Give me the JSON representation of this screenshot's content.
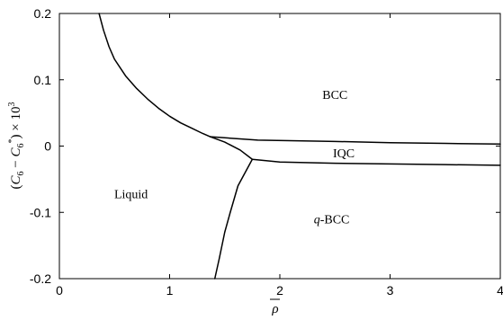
{
  "chart_data": {
    "type": "line",
    "title": "",
    "xlabel": "ρ̄",
    "ylabel": "(C₆ − C₆*) × 10³",
    "xlim": [
      0,
      4
    ],
    "ylim": [
      -0.2,
      0.2
    ],
    "xticks": [
      {
        "value": 0,
        "label": "0"
      },
      {
        "value": 1,
        "label": "1"
      },
      {
        "value": 2,
        "label": "2"
      },
      {
        "value": 3,
        "label": "3"
      },
      {
        "value": 4,
        "label": "4"
      }
    ],
    "yticks": [
      {
        "value": 0.2,
        "label": "0.2"
      },
      {
        "value": 0.1,
        "label": "0.1"
      },
      {
        "value": 0,
        "label": "0"
      },
      {
        "value": -0.1,
        "label": "-0.1"
      },
      {
        "value": -0.2,
        "label": "-0.2"
      }
    ],
    "grid": false,
    "series": [
      {
        "id": "liquid-bcc-boundary",
        "x": [
          0.36,
          0.4,
          0.45,
          0.5,
          0.6,
          0.7,
          0.8,
          0.9,
          1.0,
          1.1,
          1.2,
          1.3,
          1.37
        ],
        "y": [
          0.2,
          0.175,
          0.15,
          0.131,
          0.106,
          0.087,
          0.071,
          0.057,
          0.045,
          0.035,
          0.027,
          0.019,
          0.014
        ]
      },
      {
        "id": "bcc-iqc-boundary",
        "x": [
          1.37,
          1.8,
          2.5,
          3.0,
          3.5,
          4.0
        ],
        "y": [
          0.014,
          0.009,
          0.007,
          0.005,
          0.004,
          0.003
        ]
      },
      {
        "id": "liquid-iqc-boundary",
        "x": [
          1.37,
          1.5,
          1.64,
          1.75
        ],
        "y": [
          0.014,
          0.006,
          -0.006,
          -0.02
        ]
      },
      {
        "id": "iqc-qbcc-boundary",
        "x": [
          1.75,
          2.0,
          2.5,
          3.0,
          3.5,
          4.0
        ],
        "y": [
          -0.02,
          -0.024,
          -0.026,
          -0.027,
          -0.028,
          -0.029
        ]
      },
      {
        "id": "liquid-qbcc-boundary",
        "x": [
          1.75,
          1.62,
          1.55,
          1.5,
          1.45,
          1.41
        ],
        "y": [
          -0.02,
          -0.06,
          -0.1,
          -0.13,
          -0.17,
          -0.2
        ]
      }
    ],
    "regions": [
      {
        "label": "BCC",
        "x": 2.5,
        "y": 0.078
      },
      {
        "label": "IQC",
        "x": 2.58,
        "y": -0.01
      },
      {
        "label": "Liquid",
        "x": 0.65,
        "y": -0.072
      },
      {
        "label": "q-BCC",
        "x": 2.47,
        "y": -0.11
      }
    ]
  }
}
